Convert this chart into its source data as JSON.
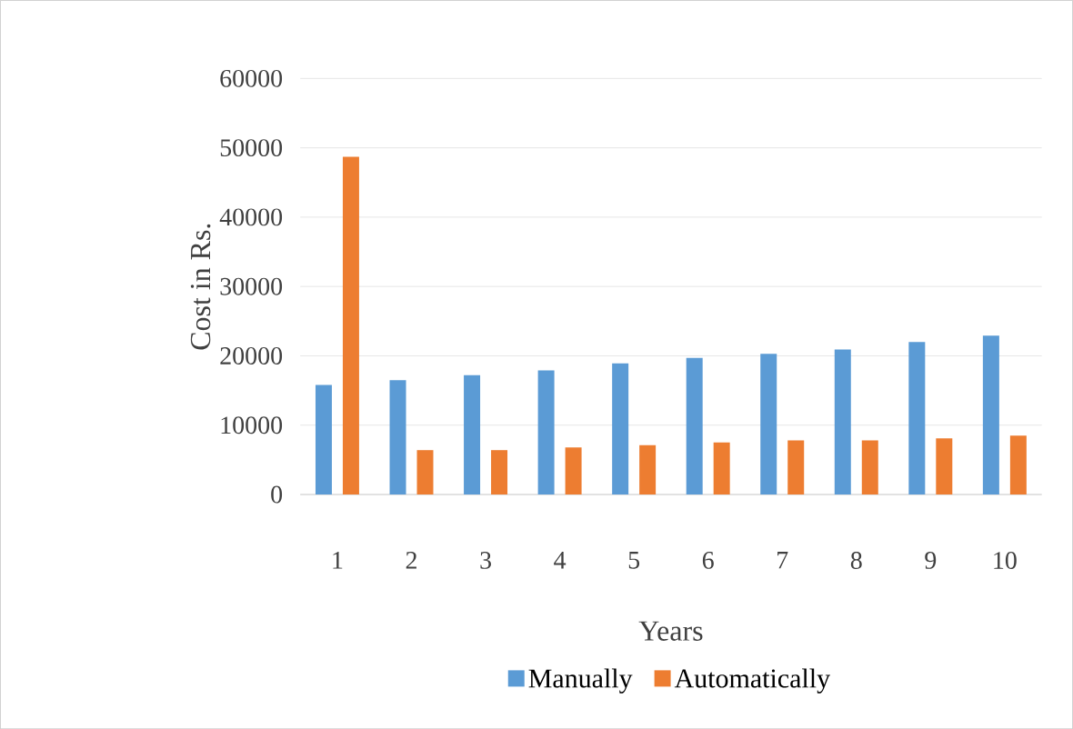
{
  "chart_data": {
    "type": "bar",
    "xlabel": "Years",
    "ylabel": "Cost in Rs.",
    "categories": [
      "1",
      "2",
      "3",
      "4",
      "5",
      "6",
      "7",
      "8",
      "9",
      "10"
    ],
    "series": [
      {
        "name": "Manually",
        "color": "#5b9bd5",
        "values": [
          15800,
          16500,
          17200,
          17900,
          18900,
          19700,
          20300,
          20900,
          22000,
          22900
        ]
      },
      {
        "name": "Automatically",
        "color": "#ed7d31",
        "values": [
          48700,
          6400,
          6400,
          6800,
          7100,
          7500,
          7800,
          7800,
          8100,
          8500
        ]
      }
    ],
    "ylim": [
      0,
      60000
    ],
    "yticks": [
      0,
      10000,
      20000,
      30000,
      40000,
      50000,
      60000
    ],
    "grid": "y",
    "legend": "bottom"
  }
}
